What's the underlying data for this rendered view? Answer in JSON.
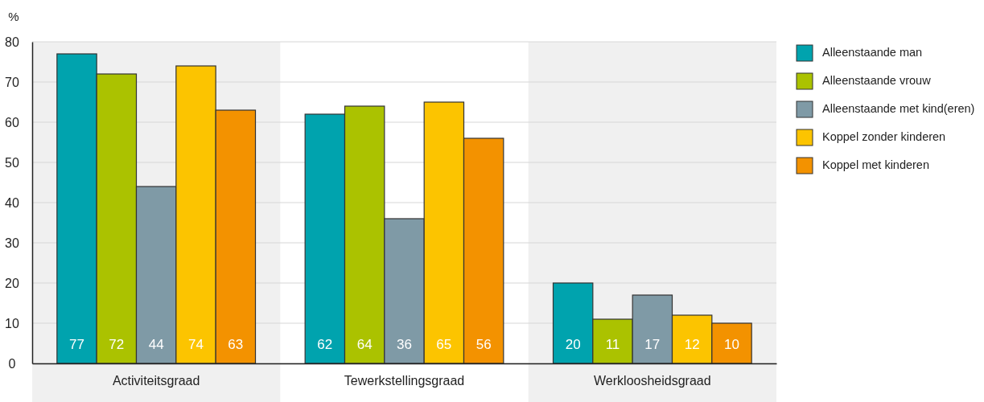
{
  "chart_data": {
    "type": "bar",
    "ylabel": "%",
    "categories": [
      "Activiteitsgraad",
      "Tewerkstellingsgraad",
      "Werkloosheidsgraad"
    ],
    "series": [
      {
        "name": "Alleenstaande man",
        "color": "#00a3ae",
        "values": [
          77,
          62,
          20
        ]
      },
      {
        "name": "Alleenstaande vrouw",
        "color": "#abc200",
        "values": [
          72,
          64,
          11
        ]
      },
      {
        "name": "Alleenstaande met kind(eren)",
        "color": "#7f9aa6",
        "values": [
          44,
          36,
          17
        ]
      },
      {
        "name": "Koppel zonder kinderen",
        "color": "#fcc400",
        "values": [
          74,
          65,
          12
        ]
      },
      {
        "name": "Koppel met kinderen",
        "color": "#f39200",
        "values": [
          63,
          56,
          10
        ]
      }
    ],
    "ylim": [
      0,
      80
    ],
    "yticks": [
      0,
      10,
      20,
      30,
      40,
      50,
      60,
      70,
      80
    ],
    "grid": "y",
    "legend": "top right",
    "data_labels": true,
    "bands": [
      {
        "axis": "x",
        "from": "Activiteitsgraad",
        "to": "Activiteitsgraad",
        "color": "#f0f0f0"
      },
      {
        "axis": "x",
        "from": "Werkloosheidsgraad",
        "to": "Werkloosheidsgraad",
        "color": "#f0f0f0"
      }
    ]
  }
}
